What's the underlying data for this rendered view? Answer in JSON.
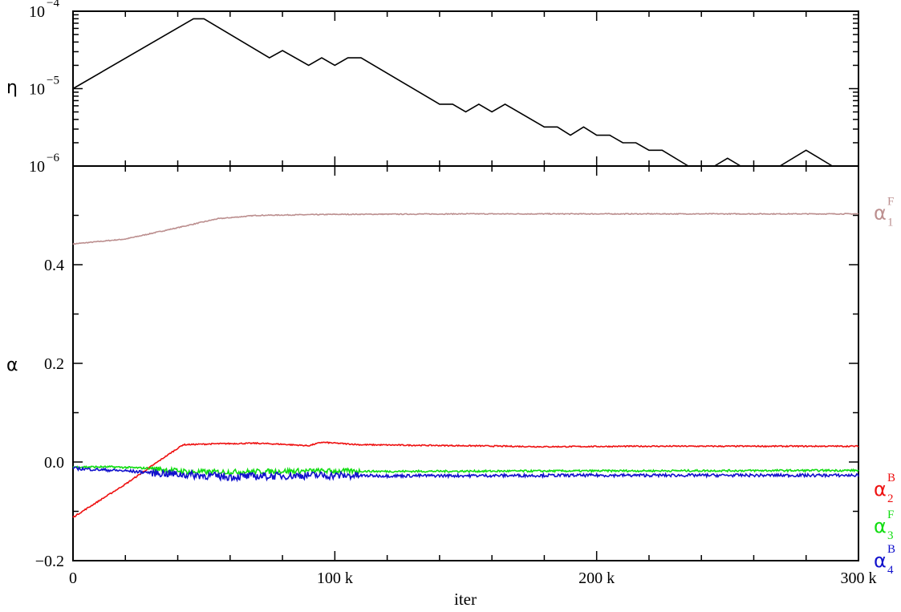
{
  "chart_data": [
    {
      "id": "eta",
      "type": "line",
      "xlabel": "",
      "ylabel": "η",
      "yscale": "log",
      "xlim": [
        0,
        300000
      ],
      "ylim": [
        1e-06,
        0.0001
      ],
      "x_ticks": [
        {
          "value": 0,
          "label": ""
        },
        {
          "value": 100000,
          "label": ""
        },
        {
          "value": 200000,
          "label": ""
        },
        {
          "value": 300000,
          "label": ""
        }
      ],
      "y_ticks": [
        {
          "value": 1e-06,
          "label": "10",
          "exp": "−6"
        },
        {
          "value": 1e-05,
          "label": "10",
          "exp": "−5"
        },
        {
          "value": 0.0001,
          "label": "10",
          "exp": "−4"
        }
      ],
      "series": [
        {
          "name": "",
          "color": "#000000",
          "points": [
            [
              0,
              1e-05
            ],
            [
              46000,
              8e-05
            ],
            [
              50000,
              8e-05
            ],
            [
              75000,
              2.5e-05
            ],
            [
              80000,
              3.1e-05
            ],
            [
              90000,
              2e-05
            ],
            [
              95000,
              2.5e-05
            ],
            [
              100000,
              2e-05
            ],
            [
              105000,
              2.5e-05
            ],
            [
              110000,
              2.5e-05
            ],
            [
              140000,
              6.3e-06
            ],
            [
              145000,
              6.3e-06
            ],
            [
              150000,
              5e-06
            ],
            [
              155000,
              6.3e-06
            ],
            [
              160000,
              5e-06
            ],
            [
              165000,
              6.3e-06
            ],
            [
              180000,
              3.2e-06
            ],
            [
              185000,
              3.2e-06
            ],
            [
              190000,
              2.5e-06
            ],
            [
              195000,
              3.2e-06
            ],
            [
              200000,
              2.5e-06
            ],
            [
              205000,
              2.5e-06
            ],
            [
              210000,
              2e-06
            ],
            [
              215000,
              2e-06
            ],
            [
              220000,
              1.6e-06
            ],
            [
              225000,
              1.6e-06
            ],
            [
              235000,
              1e-06
            ],
            [
              245000,
              1e-06
            ],
            [
              250000,
              1.26e-06
            ],
            [
              255000,
              1e-06
            ],
            [
              270000,
              1e-06
            ],
            [
              280000,
              1.6e-06
            ],
            [
              290000,
              1e-06
            ],
            [
              300000,
              1e-06
            ]
          ]
        }
      ]
    },
    {
      "id": "alpha",
      "type": "line",
      "xlabel": "iter",
      "ylabel": "α",
      "xlim": [
        0,
        300000
      ],
      "ylim": [
        -0.2,
        0.6
      ],
      "x_ticks": [
        {
          "value": 0,
          "label": "0"
        },
        {
          "value": 100000,
          "label": "100 k"
        },
        {
          "value": 200000,
          "label": "200 k"
        },
        {
          "value": 300000,
          "label": "300 k"
        }
      ],
      "y_ticks": [
        {
          "value": -0.2,
          "label": "−0.2"
        },
        {
          "value": 0.0,
          "label": "0.0"
        },
        {
          "value": 0.2,
          "label": "0.2"
        },
        {
          "value": 0.4,
          "label": "0.4"
        }
      ],
      "series": [
        {
          "label_base": "α",
          "label_sup": "F",
          "label_sub": "1",
          "color": "#bc8f8f",
          "label_value": 0.505,
          "points": [
            [
              0,
              0.442
            ],
            [
              20000,
              0.452
            ],
            [
              40000,
              0.475
            ],
            [
              55000,
              0.493
            ],
            [
              70000,
              0.5
            ],
            [
              100000,
              0.502
            ],
            [
              150000,
              0.503
            ],
            [
              300000,
              0.503
            ]
          ]
        },
        {
          "label_base": "α",
          "label_sup": "B",
          "label_sub": "2",
          "color": "#ee1111",
          "label_value": -0.055,
          "points": [
            [
              0,
              -0.112
            ],
            [
              20000,
              -0.045
            ],
            [
              35000,
              0.01
            ],
            [
              42000,
              0.035
            ],
            [
              55000,
              0.037
            ],
            [
              70000,
              0.038
            ],
            [
              80000,
              0.036
            ],
            [
              90000,
              0.033
            ],
            [
              95000,
              0.04
            ],
            [
              110000,
              0.035
            ],
            [
              150000,
              0.033
            ],
            [
              180000,
              0.031
            ],
            [
              220000,
              0.032
            ],
            [
              300000,
              0.032
            ]
          ]
        },
        {
          "label_base": "α",
          "label_sup": "F",
          "label_sub": "3",
          "color": "#11dd11",
          "label_value": -0.13,
          "points": [
            [
              0,
              -0.01
            ],
            [
              15000,
              -0.01
            ],
            [
              30000,
              -0.013
            ],
            [
              45000,
              -0.02
            ],
            [
              60000,
              -0.02
            ],
            [
              90000,
              -0.018
            ],
            [
              120000,
              -0.019
            ],
            [
              200000,
              -0.018
            ],
            [
              300000,
              -0.017
            ]
          ]
        },
        {
          "label_base": "α",
          "label_sup": "B",
          "label_sub": "4",
          "color": "#1111cc",
          "label_value": -0.2,
          "points": [
            [
              0,
              -0.013
            ],
            [
              20000,
              -0.018
            ],
            [
              40000,
              -0.025
            ],
            [
              60000,
              -0.03
            ],
            [
              90000,
              -0.027
            ],
            [
              120000,
              -0.028
            ],
            [
              200000,
              -0.027
            ],
            [
              300000,
              -0.027
            ]
          ]
        }
      ]
    }
  ]
}
